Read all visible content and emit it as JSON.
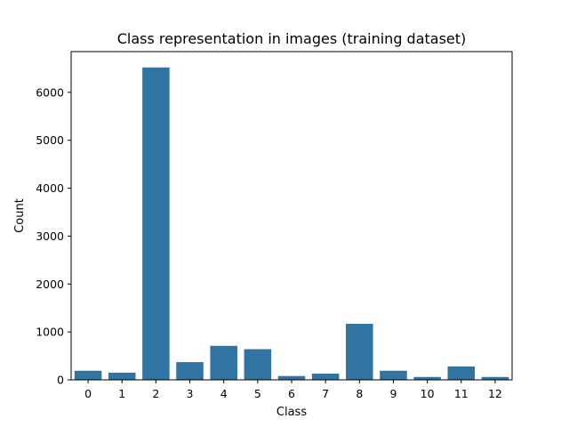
{
  "chart_data": {
    "type": "bar",
    "title": "Class representation in images (training dataset)",
    "xlabel": "Class",
    "ylabel": "Count",
    "categories": [
      "0",
      "1",
      "2",
      "3",
      "4",
      "5",
      "6",
      "7",
      "8",
      "9",
      "10",
      "11",
      "12"
    ],
    "values": [
      190,
      150,
      6520,
      370,
      710,
      640,
      80,
      130,
      1170,
      190,
      60,
      280,
      60
    ],
    "ylim": [
      0,
      6850
    ],
    "yticks": [
      0,
      1000,
      2000,
      3000,
      4000,
      5000,
      6000
    ],
    "grid": false,
    "legend": "none",
    "bar_color": "#3274a1"
  }
}
